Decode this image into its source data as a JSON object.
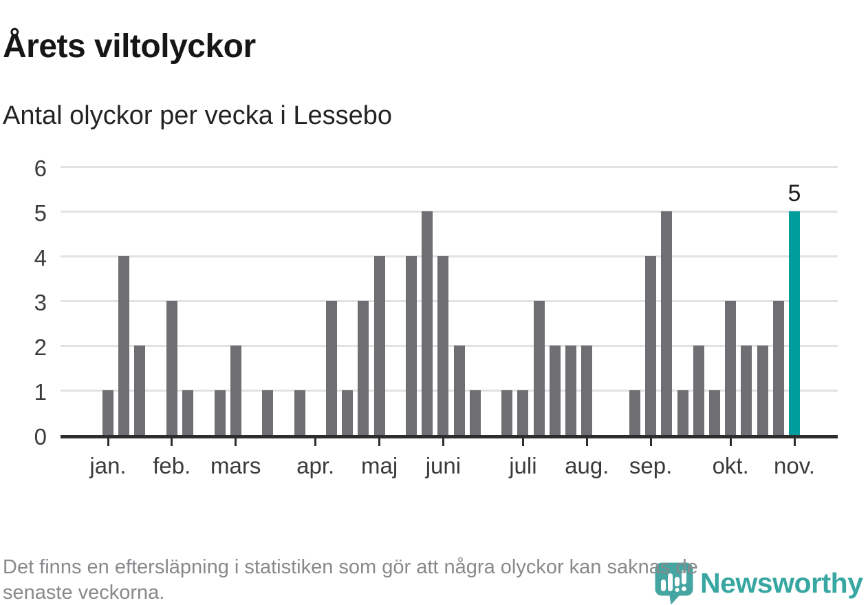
{
  "title": "Årets viltolyckor",
  "subtitle": "Antal olyckor per vecka i Lessebo",
  "footer": {
    "text": "Det finns en eftersläpning i statistiken som gör att några olyckor kan saknas de senaste veckorna."
  },
  "logo": {
    "text": "Newsworthy"
  },
  "chart_data": {
    "type": "bar",
    "title": "Årets viltolyckor",
    "subtitle": "Antal olyckor per vecka i Lessebo",
    "ylabel": "",
    "xlabel": "",
    "ylim": [
      0,
      6
    ],
    "yticks": [
      0,
      1,
      2,
      3,
      4,
      5,
      6
    ],
    "grid": true,
    "x_unit": "vecka",
    "weekly_values": [
      1,
      4,
      2,
      0,
      3,
      1,
      0,
      1,
      2,
      0,
      1,
      0,
      1,
      0,
      3,
      1,
      3,
      4,
      0,
      4,
      5,
      4,
      2,
      1,
      0,
      1,
      1,
      3,
      2,
      2,
      2,
      0,
      0,
      1,
      4,
      5,
      1,
      2,
      1,
      3,
      2,
      2,
      3,
      5
    ],
    "month_ticks": [
      {
        "label": "jan.",
        "week_index": 0
      },
      {
        "label": "feb.",
        "week_index": 4
      },
      {
        "label": "mars",
        "week_index": 8
      },
      {
        "label": "apr.",
        "week_index": 13
      },
      {
        "label": "maj",
        "week_index": 17
      },
      {
        "label": "juni",
        "week_index": 21
      },
      {
        "label": "juli",
        "week_index": 26
      },
      {
        "label": "aug.",
        "week_index": 30
      },
      {
        "label": "sep.",
        "week_index": 34
      },
      {
        "label": "okt.",
        "week_index": 39
      },
      {
        "label": "nov.",
        "week_index": 43
      }
    ],
    "highlight": {
      "week_index": 43,
      "value_label": "5"
    },
    "colors": {
      "bar": "#6e6e73",
      "highlight": "#009d9d",
      "grid": "#e2e2e2",
      "axis": "#2d2d2d",
      "logo_teal": "#45a5a0",
      "logo_text_teal": "#38a7a2"
    }
  }
}
